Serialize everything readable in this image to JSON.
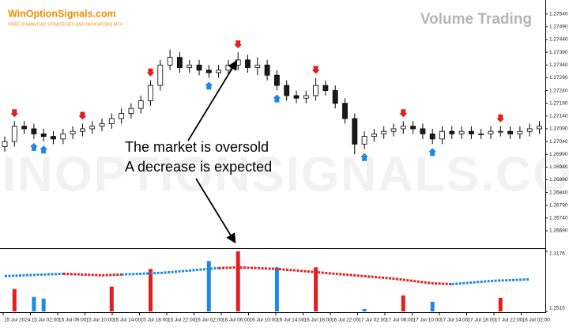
{
  "header": {
    "brand": "WinOptionSignals.com",
    "tagline": "FREE DOWNLOAD STRATEGIES AND INDICATORS MT4",
    "title": "Volume Trading",
    "watermark": "WINOPTIONSIGNALS.COM"
  },
  "annotation": {
    "line1": "The market is oversold",
    "line2": "A decrease is expected"
  },
  "chart_data": [
    {
      "type": "candlestick",
      "up_color": "#ffffff",
      "down_color": "#1a1a1a",
      "open": [
        1.2702,
        1.2704,
        1.271,
        1.2709,
        1.2707,
        1.2706,
        1.2705,
        1.2707,
        1.2708,
        1.2709,
        1.271,
        1.2711,
        1.2713,
        1.2715,
        1.2717,
        1.272,
        1.2726,
        1.2734,
        1.2737,
        1.2733,
        1.2734,
        1.2732,
        1.2731,
        1.2732,
        1.2734,
        1.2736,
        1.2733,
        1.2734,
        1.273,
        1.2726,
        1.2722,
        1.2721,
        1.2722,
        1.2726,
        1.2724,
        1.2719,
        1.2713,
        1.2703,
        1.2706,
        1.2707,
        1.2708,
        1.2709,
        1.271,
        1.2709,
        1.2707,
        1.2705,
        1.2708,
        1.2707,
        1.2708,
        1.2707,
        1.2707,
        1.2708,
        1.2708,
        1.2707,
        1.2708,
        1.2709
      ],
      "high": [
        1.2706,
        1.2712,
        1.2712,
        1.2711,
        1.2709,
        1.2708,
        1.2709,
        1.271,
        1.2711,
        1.2712,
        1.2713,
        1.2715,
        1.2717,
        1.2719,
        1.2722,
        1.2728,
        1.2736,
        1.274,
        1.2739,
        1.2736,
        1.2736,
        1.2734,
        1.2734,
        1.2736,
        1.2739,
        1.2738,
        1.2737,
        1.2736,
        1.2732,
        1.2728,
        1.2724,
        1.2724,
        1.2729,
        1.2728,
        1.2726,
        1.2721,
        1.2715,
        1.2708,
        1.2709,
        1.271,
        1.2711,
        1.2712,
        1.2712,
        1.2711,
        1.2709,
        1.271,
        1.271,
        1.271,
        1.271,
        1.2709,
        1.271,
        1.271,
        1.271,
        1.271,
        1.2711,
        1.2712
      ],
      "low": [
        1.27,
        1.2702,
        1.2707,
        1.2705,
        1.2704,
        1.2703,
        1.2703,
        1.2705,
        1.2706,
        1.2707,
        1.2708,
        1.2709,
        1.2711,
        1.2713,
        1.2715,
        1.2718,
        1.2724,
        1.2732,
        1.2731,
        1.2731,
        1.273,
        1.2729,
        1.2729,
        1.273,
        1.2732,
        1.2731,
        1.273,
        1.2728,
        1.2724,
        1.272,
        1.2719,
        1.2719,
        1.272,
        1.2722,
        1.2717,
        1.2711,
        1.2699,
        1.2701,
        1.2704,
        1.2705,
        1.2706,
        1.2707,
        1.2707,
        1.2705,
        1.2703,
        1.2703,
        1.2705,
        1.2705,
        1.2705,
        1.2705,
        1.2705,
        1.2706,
        1.2705,
        1.2705,
        1.2706,
        1.2707
      ],
      "close": [
        1.2704,
        1.271,
        1.2709,
        1.2707,
        1.2706,
        1.2705,
        1.2707,
        1.2708,
        1.2709,
        1.271,
        1.2711,
        1.2713,
        1.2715,
        1.2717,
        1.272,
        1.2726,
        1.2734,
        1.2737,
        1.2733,
        1.2734,
        1.2732,
        1.2731,
        1.2732,
        1.2734,
        1.2736,
        1.2733,
        1.2734,
        1.273,
        1.2726,
        1.2722,
        1.2721,
        1.2722,
        1.2726,
        1.2724,
        1.2719,
        1.2713,
        1.2703,
        1.2706,
        1.2707,
        1.2708,
        1.2709,
        1.271,
        1.2709,
        1.2707,
        1.2705,
        1.2708,
        1.2707,
        1.2708,
        1.2707,
        1.2707,
        1.2708,
        1.2708,
        1.2707,
        1.2708,
        1.2709,
        1.271
      ],
      "sell_signals": {
        "color": "#e02020",
        "positions": [
          1,
          8,
          15,
          24,
          32,
          41,
          51
        ]
      },
      "buy_signals": {
        "color": "#1e88e5",
        "positions": [
          3,
          4,
          21,
          28,
          37,
          44
        ]
      },
      "ylim": [
        1.26625,
        1.27595
      ],
      "yticks": [
        {
          "value": 1.2754,
          "label": "1.27540"
        },
        {
          "value": 1.2749,
          "label": "1.27490"
        },
        {
          "value": 1.2744,
          "label": "1.27440"
        },
        {
          "value": 1.2739,
          "label": "1.27390"
        },
        {
          "value": 1.2734,
          "label": "1.27340"
        },
        {
          "value": 1.2729,
          "label": "1.27290"
        },
        {
          "value": 1.2724,
          "label": "1.27240"
        },
        {
          "value": 1.2719,
          "label": "1.27190"
        },
        {
          "value": 1.2714,
          "label": "1.27140"
        },
        {
          "value": 1.2709,
          "label": "1.27090"
        },
        {
          "value": 1.2704,
          "label": "1.27040"
        },
        {
          "value": 1.2699,
          "label": "1.26990"
        },
        {
          "value": 1.2694,
          "label": "1.26940"
        },
        {
          "value": 1.2689,
          "label": "1.26890"
        },
        {
          "value": 1.2684,
          "label": "1.26840"
        },
        {
          "value": 1.2679,
          "label": "1.26790"
        },
        {
          "value": 1.2674,
          "label": "1.26740"
        },
        {
          "value": 1.2669,
          "label": "1.26690"
        }
      ]
    },
    {
      "type": "indicator",
      "series": [
        {
          "color": "#1e88e5",
          "values": [
            1.2903,
            1.2912,
            1.2921,
            1.2929,
            null,
            null,
            1.2921,
            1.2929,
            1.2938,
            1.2956,
            1.2973,
            1.2991,
            null,
            null,
            null,
            null,
            null,
            null,
            null,
            null,
            null,
            null,
            null,
            1.2815,
            1.2832,
            1.285,
            1.2859,
            1.2868
          ]
        },
        {
          "color": "#e02020",
          "values": [
            null,
            null,
            null,
            1.2929,
            1.2921,
            1.2912,
            1.2921,
            null,
            null,
            null,
            null,
            1.2991,
            1.3,
            1.2991,
            1.2982,
            1.2965,
            1.2947,
            1.2929,
            1.2912,
            1.2894,
            1.2876,
            1.285,
            1.2824,
            1.2815,
            null,
            null,
            null,
            null
          ]
        }
      ],
      "histogram": {
        "positions": [
          1,
          3,
          4,
          11,
          15,
          21,
          24,
          28,
          32,
          37,
          41,
          44,
          51
        ],
        "values": [
          1.2762,
          1.2674,
          1.2656,
          1.2788,
          1.2982,
          1.307,
          1.3176,
          1.3,
          1.3,
          1.2542,
          1.2691,
          1.2621,
          1.2665
        ],
        "colors": [
          "#e02020",
          "#1e88e5",
          "#1e88e5",
          "#e02020",
          "#e02020",
          "#1e88e5",
          "#e02020",
          "#1e88e5",
          "#e02020",
          "#1e88e5",
          "#e02020",
          "#1e88e5",
          "#e02020"
        ]
      },
      "ylim": [
        1.2515,
        1.3176
      ],
      "yticks": [
        1.3176,
        1.2515
      ]
    },
    {
      "type": "time_axis",
      "categories": [
        "15 Jul 2024",
        "15 Jul 02:00",
        "15 Jul 06:00",
        "15 Jul 10:00",
        "15 Jul 14:00",
        "15 Jul 18:00",
        "15 Jul 22:00",
        "16 Jul 02:00",
        "16 Jul 06:00",
        "16 Jul 10:00",
        "16 Jul 14:00",
        "16 Jul 18:00",
        "16 Jul 22:00",
        "17 Jul 02:00",
        "17 Jul 06:00",
        "17 Jul 10:00",
        "17 Jul 14:00",
        "17 Jul 18:00",
        "17 Jul 22:00",
        "18 Jul 02:00"
      ]
    }
  ]
}
